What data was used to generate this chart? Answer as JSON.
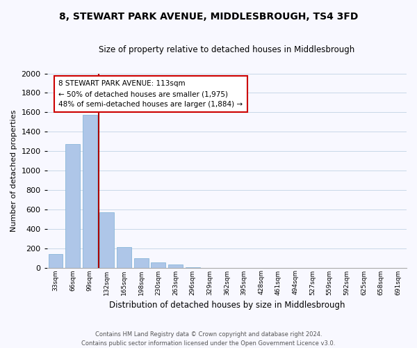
{
  "title": "8, STEWART PARK AVENUE, MIDDLESBROUGH, TS4 3FD",
  "subtitle": "Size of property relative to detached houses in Middlesbrough",
  "xlabel": "Distribution of detached houses by size in Middlesbrough",
  "ylabel": "Number of detached properties",
  "bar_color": "#aec6e8",
  "bar_edge_color": "#7bafd4",
  "marker_color": "#aa0000",
  "annotation_title": "8 STEWART PARK AVENUE: 113sqm",
  "annotation_line1": "← 50% of detached houses are smaller (1,975)",
  "annotation_line2": "48% of semi-detached houses are larger (1,884) →",
  "annotation_box_color": "#ffffff",
  "annotation_box_edge": "#cc0000",
  "categories": [
    "33sqm",
    "66sqm",
    "99sqm",
    "132sqm",
    "165sqm",
    "198sqm",
    "230sqm",
    "263sqm",
    "296sqm",
    "329sqm",
    "362sqm",
    "395sqm",
    "428sqm",
    "461sqm",
    "494sqm",
    "527sqm",
    "559sqm",
    "592sqm",
    "625sqm",
    "658sqm",
    "691sqm"
  ],
  "values": [
    140,
    1270,
    1575,
    570,
    215,
    95,
    55,
    35,
    5,
    0,
    0,
    0,
    0,
    0,
    0,
    0,
    0,
    0,
    0,
    0,
    0
  ],
  "ylim": [
    0,
    2000
  ],
  "yticks": [
    0,
    200,
    400,
    600,
    800,
    1000,
    1200,
    1400,
    1600,
    1800,
    2000
  ],
  "footer_line1": "Contains HM Land Registry data © Crown copyright and database right 2024.",
  "footer_line2": "Contains public sector information licensed under the Open Government Licence v3.0.",
  "bg_color": "#f8f8ff",
  "grid_color": "#c8d8e8"
}
